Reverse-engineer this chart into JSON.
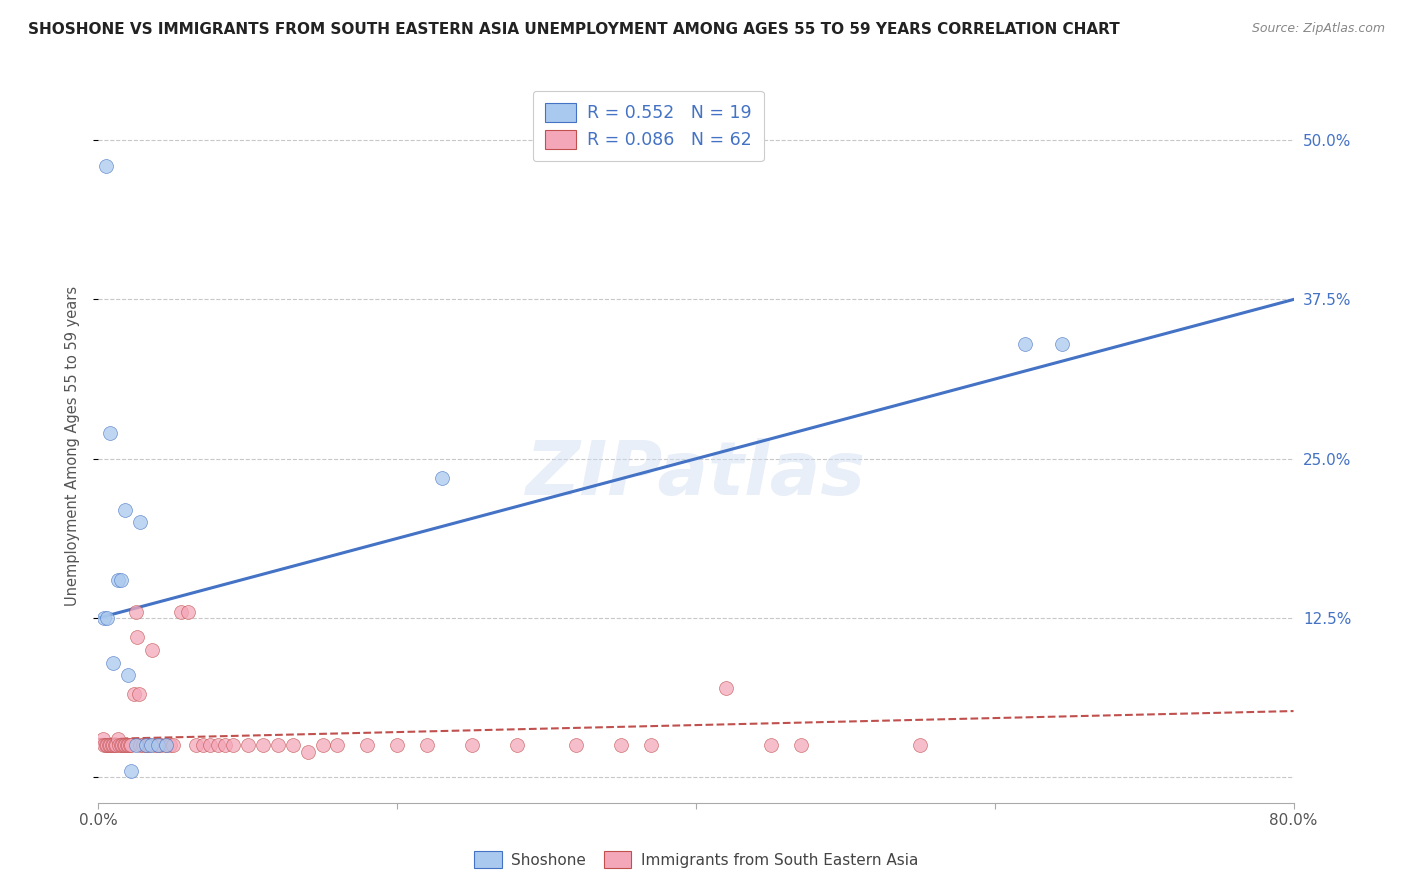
{
  "title": "SHOSHONE VS IMMIGRANTS FROM SOUTH EASTERN ASIA UNEMPLOYMENT AMONG AGES 55 TO 59 YEARS CORRELATION CHART",
  "source": "Source: ZipAtlas.com",
  "ylabel": "Unemployment Among Ages 55 to 59 years",
  "xlim": [
    0.0,
    0.8
  ],
  "ylim": [
    -0.02,
    0.54
  ],
  "xticks": [
    0.0,
    0.2,
    0.4,
    0.6,
    0.8
  ],
  "xticklabels": [
    "0.0%",
    "",
    "",
    "",
    "80.0%"
  ],
  "ytick_positions": [
    0.0,
    0.125,
    0.25,
    0.375,
    0.5
  ],
  "ytick_labels_right": [
    "",
    "12.5%",
    "25.0%",
    "37.5%",
    "50.0%"
  ],
  "shoshone_R": 0.552,
  "shoshone_N": 19,
  "immigrants_R": 0.086,
  "immigrants_N": 62,
  "shoshone_color": "#aac9ee",
  "shoshone_line_color": "#4472c4",
  "immigrants_color": "#f4a7b9",
  "immigrants_line_color": "#c0504d",
  "watermark": "ZIPatlas",
  "background_color": "#ffffff",
  "grid_color": "#c8c8c8",
  "legend_text_color": "#4472c4",
  "shoshone_line_x0": 0.0,
  "shoshone_line_y0": 0.125,
  "shoshone_line_x1": 0.8,
  "shoshone_line_y1": 0.375,
  "immigrants_line_x0": 0.0,
  "immigrants_line_y0": 0.03,
  "immigrants_line_x1": 0.8,
  "immigrants_line_y1": 0.052,
  "shoshone_x": [
    0.004,
    0.006,
    0.008,
    0.01,
    0.013,
    0.015,
    0.018,
    0.02,
    0.022,
    0.025,
    0.028,
    0.032,
    0.035,
    0.04,
    0.045,
    0.23,
    0.62,
    0.645
  ],
  "shoshone_y": [
    0.125,
    0.125,
    0.27,
    0.09,
    0.155,
    0.155,
    0.21,
    0.08,
    0.005,
    0.025,
    0.2,
    0.025,
    0.025,
    0.025,
    0.025,
    0.235,
    0.34,
    0.34
  ],
  "shoshone_outlier_x": [
    0.005
  ],
  "shoshone_outlier_y": [
    0.48
  ],
  "immigrants_x": [
    0.003,
    0.004,
    0.005,
    0.006,
    0.007,
    0.008,
    0.009,
    0.01,
    0.011,
    0.012,
    0.013,
    0.014,
    0.015,
    0.016,
    0.017,
    0.018,
    0.019,
    0.02,
    0.021,
    0.022,
    0.024,
    0.025,
    0.026,
    0.027,
    0.028,
    0.03,
    0.032,
    0.034,
    0.036,
    0.038,
    0.04,
    0.042,
    0.045,
    0.048,
    0.05,
    0.055,
    0.06,
    0.065,
    0.07,
    0.075,
    0.08,
    0.085,
    0.09,
    0.1,
    0.11,
    0.12,
    0.13,
    0.14,
    0.15,
    0.16,
    0.18,
    0.2,
    0.22,
    0.25,
    0.28,
    0.32,
    0.35,
    0.37,
    0.42,
    0.45,
    0.47,
    0.55
  ],
  "immigrants_y": [
    0.03,
    0.025,
    0.025,
    0.025,
    0.025,
    0.025,
    0.025,
    0.025,
    0.025,
    0.025,
    0.03,
    0.025,
    0.025,
    0.025,
    0.025,
    0.025,
    0.025,
    0.025,
    0.025,
    0.025,
    0.065,
    0.13,
    0.11,
    0.065,
    0.025,
    0.025,
    0.025,
    0.025,
    0.1,
    0.025,
    0.025,
    0.025,
    0.025,
    0.025,
    0.025,
    0.13,
    0.13,
    0.025,
    0.025,
    0.025,
    0.025,
    0.025,
    0.025,
    0.025,
    0.025,
    0.025,
    0.025,
    0.02,
    0.025,
    0.025,
    0.025,
    0.025,
    0.025,
    0.025,
    0.025,
    0.025,
    0.025,
    0.025,
    0.07,
    0.025,
    0.025,
    0.025
  ]
}
